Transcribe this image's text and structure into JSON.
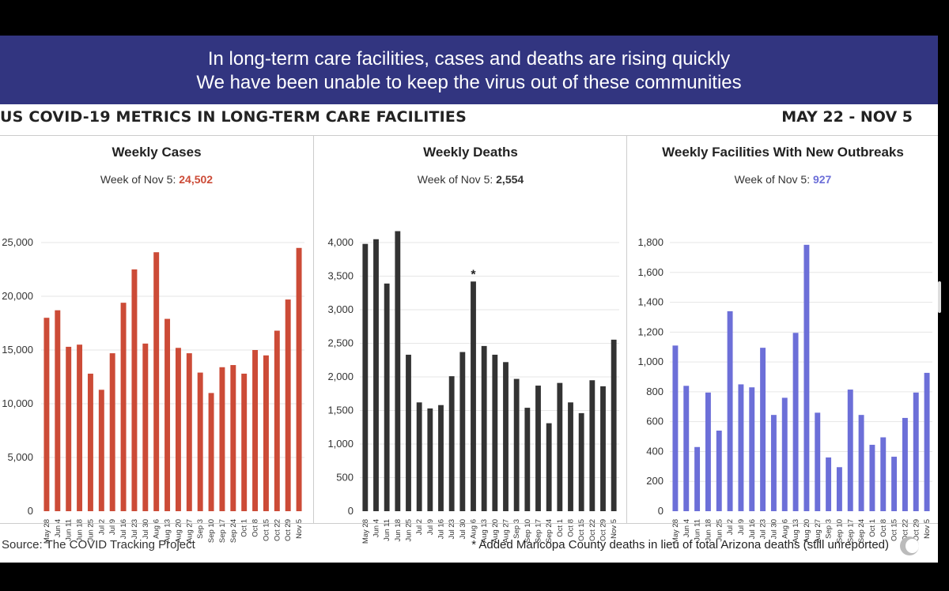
{
  "banner": {
    "line1": "In long-term care facilities, cases and deaths are rising quickly",
    "line2": "We have been unable to keep the virus out of these communities"
  },
  "heading": "US COVID-19 METRICS IN LONG-TERM CARE FACILITIES",
  "date_range": "MAY 22 - NOV 5",
  "source": "Source: The COVID Tracking Project",
  "footnote": "* Added Maricopa County deaths in lieu of total Arizona deaths (still unreported)",
  "colors": {
    "banner": "#323580",
    "cases": "#cc4b37",
    "deaths": "#333333",
    "outbreaks": "#6c6fd8"
  },
  "chart_data": [
    {
      "type": "bar",
      "title": "Weekly Cases",
      "subtitle_prefix": "Week of Nov 5: ",
      "subtitle_value": "24,502",
      "color": "#cc4b37",
      "categories": [
        "May 28",
        "Jun 4",
        "Jun 11",
        "Jun 18",
        "Jun 25",
        "Jul 2",
        "Jul 9",
        "Jul 16",
        "Jul 23",
        "Jul 30",
        "Aug 6",
        "Aug 13",
        "Aug 20",
        "Aug 27",
        "Sep 3",
        "Sep 10",
        "Sep 17",
        "Sep 24",
        "Oct 1",
        "Oct 8",
        "Oct 15",
        "Oct 22",
        "Oct 29",
        "Nov 5"
      ],
      "values": [
        18000,
        18700,
        15300,
        15500,
        12800,
        11300,
        14700,
        19400,
        22500,
        15600,
        24100,
        17900,
        15200,
        14700,
        12900,
        11000,
        13400,
        13600,
        12800,
        15000,
        14500,
        16800,
        19700,
        24502
      ],
      "ylim": [
        0,
        25000
      ],
      "yticks": [
        0,
        5000,
        10000,
        15000,
        20000,
        25000
      ],
      "ytick_labels": [
        "0",
        "5,000",
        "10,000",
        "15,000",
        "20,000",
        "25,000"
      ]
    },
    {
      "type": "bar",
      "title": "Weekly Deaths",
      "subtitle_prefix": "Week of Nov 5: ",
      "subtitle_value": "2,554",
      "color": "#333333",
      "categories": [
        "May 28",
        "Jun 4",
        "Jun 11",
        "Jun 18",
        "Jun 25",
        "Jul 2",
        "Jul 9",
        "Jul 16",
        "Jul 23",
        "Jul 30",
        "Aug 6",
        "Aug 13",
        "Aug 20",
        "Aug 27",
        "Sep 3",
        "Sep 10",
        "Sep 17",
        "Sep 24",
        "Oct 1",
        "Oct 8",
        "Oct 15",
        "Oct 22",
        "Oct 29",
        "Nov 5"
      ],
      "values": [
        3980,
        4050,
        3390,
        4170,
        2330,
        1620,
        1530,
        1580,
        2010,
        2370,
        3420,
        2460,
        2330,
        2220,
        1970,
        1540,
        1870,
        1310,
        1910,
        1620,
        1460,
        1950,
        1860,
        2554
      ],
      "ylim": [
        0,
        4250
      ],
      "yticks": [
        0,
        500,
        1000,
        1500,
        2000,
        2500,
        3000,
        3500,
        4000
      ],
      "ytick_labels": [
        "0",
        "500",
        "1,000",
        "1,500",
        "2,000",
        "2,500",
        "3,000",
        "3,500",
        "4,000"
      ],
      "annotation": {
        "category": "Aug 6",
        "text": "*"
      }
    },
    {
      "type": "bar",
      "title": "Weekly Facilities With New Outbreaks",
      "subtitle_prefix": "Week of Nov 5: ",
      "subtitle_value": "927",
      "color": "#6c6fd8",
      "categories": [
        "May 28",
        "Jun 4",
        "Jun 11",
        "Jun 18",
        "Jun 25",
        "Jul 2",
        "Jul 9",
        "Jul 16",
        "Jul 23",
        "Jul 30",
        "Aug 6",
        "Aug 13",
        "Aug 20",
        "Aug 27",
        "Sep 3",
        "Sep 10",
        "Sep 17",
        "Sep 24",
        "Oct 1",
        "Oct 8",
        "Oct 15",
        "Oct 22",
        "Oct 29",
        "Nov 5"
      ],
      "values": [
        1110,
        840,
        430,
        795,
        540,
        1340,
        850,
        830,
        1095,
        645,
        760,
        1195,
        1785,
        660,
        360,
        295,
        815,
        645,
        445,
        495,
        365,
        625,
        795,
        927
      ],
      "ylim": [
        0,
        1800
      ],
      "yticks": [
        0,
        200,
        400,
        600,
        800,
        1000,
        1200,
        1400,
        1600,
        1800
      ],
      "ytick_labels": [
        "0",
        "200",
        "400",
        "600",
        "800",
        "1,000",
        "1,200",
        "1,400",
        "1,600",
        "1,800"
      ]
    }
  ]
}
